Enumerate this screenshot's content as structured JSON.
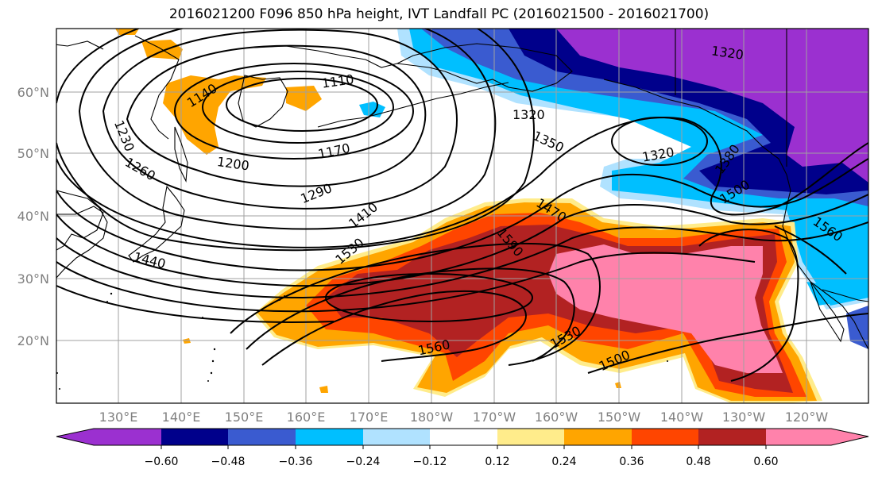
{
  "title": "2016021200 F096 850 hPa height, IVT Landfall PC (2016021500 - 2016021700)",
  "map": {
    "lat_labels": [
      "60°N",
      "50°N",
      "40°N",
      "30°N",
      "20°N"
    ],
    "lon_labels": [
      "130°E",
      "140°E",
      "150°E",
      "160°E",
      "170°E",
      "180°W",
      "170°W",
      "160°W",
      "150°W",
      "140°W",
      "130°W",
      "120°W"
    ],
    "contour_labels": [
      "1110",
      "1140",
      "1170",
      "1200",
      "1230",
      "1260",
      "1290",
      "1320",
      "1320",
      "1320",
      "1350",
      "1380",
      "1410",
      "1440",
      "1470",
      "1500",
      "1500",
      "1530",
      "1530",
      "1560",
      "1560",
      "1590"
    ]
  },
  "colorbar": {
    "tick_labels": [
      "−0.60",
      "−0.48",
      "−0.36",
      "−0.24",
      "−0.12",
      "0.12",
      "0.24",
      "0.36",
      "0.48",
      "0.60"
    ],
    "colors": [
      "#9b30d0",
      "#00008b",
      "#3a5bd0",
      "#00bfff",
      "#b0e2ff",
      "#ffffff",
      "#ffec8b",
      "#ffa500",
      "#ff4500",
      "#b22222",
      "#ff82ab"
    ]
  }
}
